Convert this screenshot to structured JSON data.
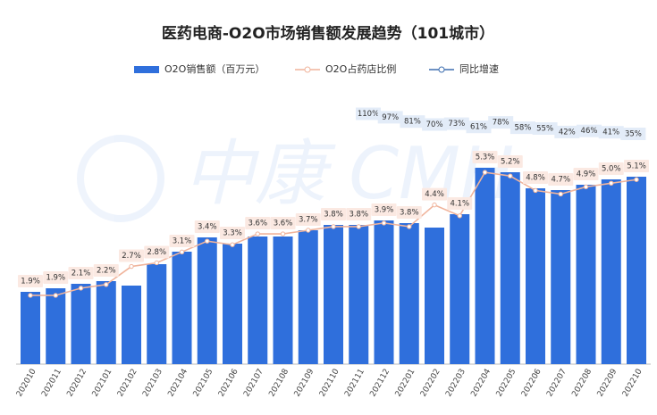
{
  "chart_data": {
    "type": "bar",
    "title": "医药电商-O2O市场销售额发展趋势（101城市）",
    "categories": [
      "202010",
      "202011",
      "202012",
      "202101",
      "202102",
      "202103",
      "202104",
      "202105",
      "202106",
      "202107",
      "202108",
      "202109",
      "202110",
      "202111",
      "202112",
      "202201",
      "202202",
      "202203",
      "202204",
      "202205",
      "202206",
      "202207",
      "202208",
      "202209",
      "202210"
    ],
    "ylim": [
      0,
      300
    ],
    "y2lim": [
      0,
      7.4
    ],
    "series": [
      {
        "name": "O2O销售额（百万元）",
        "color": "#2f6fdc",
        "values": [
          81,
          85,
          90,
          93,
          88,
          112,
          126,
          142,
          135,
          143,
          143,
          150,
          156,
          156,
          161,
          158,
          153,
          168,
          220,
          215,
          197,
          195,
          201,
          207,
          210
        ]
      },
      {
        "name": "O2O占药店比例",
        "color": "#f0b49c",
        "axis": "y2",
        "values": [
          1.9,
          1.9,
          2.1,
          2.2,
          2.7,
          2.8,
          3.1,
          3.4,
          3.3,
          3.6,
          3.6,
          3.7,
          3.8,
          3.8,
          3.9,
          3.8,
          4.4,
          4.1,
          5.3,
          5.2,
          4.8,
          4.7,
          4.9,
          5.0,
          5.1
        ],
        "value_labels": [
          "1.9%",
          "1.9%",
          "2.1%",
          "2.2%",
          "2.7%",
          "2.8%",
          "3.1%",
          "3.4%",
          "3.3%",
          "3.6%",
          "3.6%",
          "3.7%",
          "3.8%",
          "3.8%",
          "3.9%",
          "3.8%",
          "4.4%",
          "4.1%",
          "5.3%",
          "5.2%",
          "4.8%",
          "4.7%",
          "4.9%",
          "5.0%",
          "5.1%"
        ]
      },
      {
        "name": "同比增速",
        "color": "#3f6fb0",
        "values": [
          null,
          null,
          null,
          null,
          null,
          null,
          null,
          null,
          null,
          null,
          null,
          null,
          110,
          97,
          81,
          70,
          73,
          61,
          78,
          58,
          55,
          42,
          46,
          41,
          35
        ],
        "value_labels": [
          null,
          null,
          null,
          null,
          null,
          null,
          null,
          null,
          null,
          null,
          null,
          null,
          "110%",
          "97%",
          "81%",
          "70%",
          "73%",
          "61%",
          "78%",
          "58%",
          "55%",
          "42%",
          "46%",
          "41%",
          "35%"
        ]
      }
    ]
  }
}
